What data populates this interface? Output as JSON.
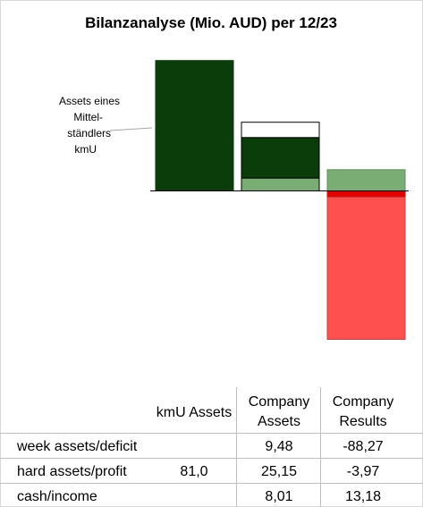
{
  "chart_data": {
    "type": "bar",
    "title": "Bilanzanalyse  (Mio. AUD) per 12/23",
    "annotation": [
      "Assets eines",
      "Mittel-",
      "ständlers",
      "kmU"
    ],
    "columns": [
      "kmU Assets",
      "Company Assets",
      "Company Results"
    ],
    "rows": [
      {
        "label": "week assets/deficit",
        "values": [
          "",
          "9,48",
          "-88,27"
        ]
      },
      {
        "label": "hard assets/profit",
        "values": [
          "81,0",
          "25,15",
          "-3,97"
        ]
      },
      {
        "label": "cash/income",
        "values": [
          "",
          "8,01",
          "13,18"
        ]
      }
    ],
    "stacks": [
      [
        {
          "component": "hard assets",
          "value": 81.0,
          "color": "#0a3d0a",
          "outline": "#0a3d0a"
        }
      ],
      [
        {
          "component": "cash",
          "value": 8.01,
          "color": "#7aad73",
          "outline": "#000000"
        },
        {
          "component": "hard assets",
          "value": 25.15,
          "color": "#0a3d0a",
          "outline": "#000000"
        },
        {
          "component": "week assets",
          "value": 9.48,
          "color": "#ffffff",
          "outline": "#000000"
        }
      ],
      [
        {
          "component": "income",
          "value": 13.18,
          "color": "#7aad73",
          "outline": "#5e8d58"
        },
        {
          "component": "loss",
          "value": -3.97,
          "color": "#e00000",
          "outline": "#e00000"
        },
        {
          "component": "deficit",
          "value": -88.27,
          "color": "#ff5050",
          "outline": "#c84040"
        }
      ]
    ]
  }
}
